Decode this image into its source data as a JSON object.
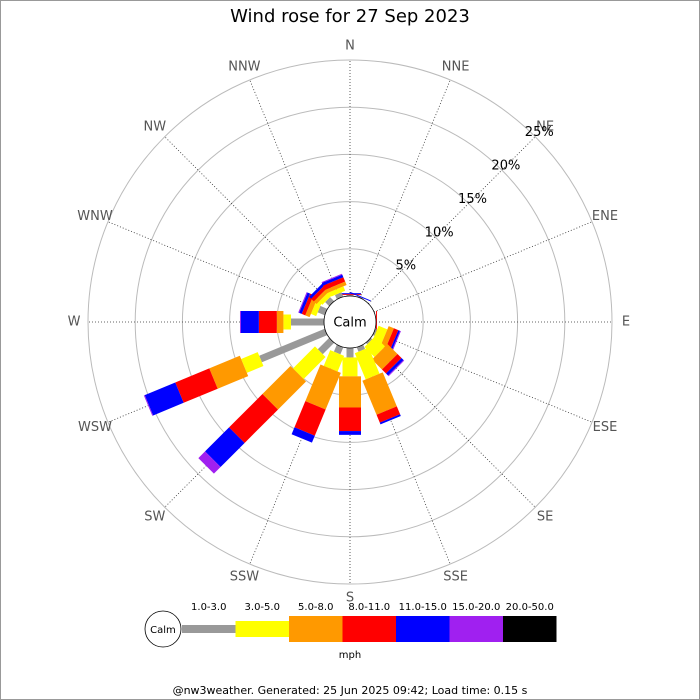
{
  "chart_data": {
    "type": "windrose",
    "title": "Wind rose for 27 Sep 2023",
    "categories": [
      "N",
      "NNE",
      "NE",
      "ENE",
      "E",
      "ESE",
      "SE",
      "SSE",
      "S",
      "SSW",
      "SW",
      "WSW",
      "W",
      "WNW",
      "NW",
      "NNW"
    ],
    "calm_label": "Calm",
    "unit_label": "mph",
    "footer": "@nw3weather. Generated: 25 Jun 2025 09:42; Load time: 0.15 s",
    "ylim": [
      0,
      25
    ],
    "yticks": [
      {
        "value": 5,
        "label": "5%"
      },
      {
        "value": 10,
        "label": "10%"
      },
      {
        "value": 15,
        "label": "15%"
      },
      {
        "value": 20,
        "label": "20%"
      },
      {
        "value": 25,
        "label": "25%"
      }
    ],
    "series": [
      {
        "name": "1.0-3.0",
        "color": "#999999",
        "values": [
          0.1,
          0.1,
          0,
          0,
          0,
          0.2,
          0.2,
          0.5,
          1.0,
          0.8,
          1.7,
          7.5,
          3.5,
          0.8,
          0.6,
          0.5
        ]
      },
      {
        "name": "3.0-5.0",
        "color": "#ffff00",
        "values": [
          0,
          0,
          0,
          0,
          0,
          1.0,
          1.5,
          3.0,
          2.0,
          1.8,
          3.3,
          1.9,
          0.8,
          0.6,
          0.5,
          0.5
        ]
      },
      {
        "name": "5.0-8.0",
        "color": "#ff9900",
        "values": [
          0,
          0,
          0,
          0,
          0,
          0.6,
          1.5,
          3.9,
          3.3,
          4.2,
          4.2,
          3.5,
          0.7,
          0.5,
          0.4,
          0.4
        ]
      },
      {
        "name": "8.0-11.0",
        "color": "#ff0000",
        "values": [
          0.1,
          0,
          0,
          0,
          0.1,
          0.5,
          0.6,
          0.9,
          2.5,
          3.0,
          5.0,
          3.9,
          1.9,
          0.4,
          0.4,
          0.5
        ]
      },
      {
        "name": "11.0-15.0",
        "color": "#0000ff",
        "values": [
          0.1,
          0.1,
          0,
          0,
          0,
          0.2,
          0.3,
          0.2,
          0.4,
          0.8,
          3.6,
          3.5,
          1.9,
          0.3,
          0.3,
          0.3
        ]
      },
      {
        "name": "15.0-20.0",
        "color": "#a020f0",
        "values": [
          0,
          0,
          0,
          0,
          0,
          0.1,
          0.1,
          0,
          0,
          0,
          1.0,
          0.1,
          0.1,
          0.1,
          0,
          0.1
        ]
      },
      {
        "name": "20.0-50.0",
        "color": "#000000",
        "values": [
          0,
          0,
          0,
          0,
          0,
          0,
          0,
          0,
          0,
          0,
          0,
          0,
          0,
          0,
          0,
          0
        ]
      }
    ]
  }
}
